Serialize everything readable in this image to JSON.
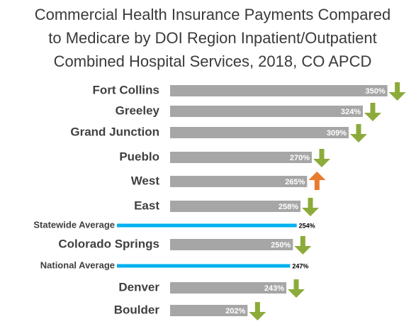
{
  "chart_data": {
    "type": "bar",
    "title_lines": [
      "Commercial Health Insurance Payments Compared",
      "to Medicare by DOI Region Inpatient/Outpatient",
      "Combined Hospital Services, 2018, CO APCD"
    ],
    "categories": [
      "Fort Collins",
      "Greeley",
      "Grand Junction",
      "Pueblo",
      "West",
      "East",
      "Statewide Average",
      "Colorado Springs",
      "National Average",
      "Denver",
      "Boulder"
    ],
    "values": [
      350,
      324,
      309,
      270,
      265,
      258,
      254,
      250,
      247,
      243,
      202
    ],
    "value_labels": [
      "350%",
      "324%",
      "309%",
      "270%",
      "265%",
      "258%",
      "254%",
      "250%",
      "247%",
      "243%",
      "202%"
    ],
    "styles": [
      "bar",
      "bar",
      "bar",
      "bar",
      "bar",
      "bar",
      "line",
      "bar",
      "line",
      "bar",
      "bar"
    ],
    "arrows": [
      "down",
      "down",
      "down",
      "down",
      "up",
      "down",
      null,
      "down",
      null,
      "down",
      "down"
    ],
    "color": "#a6a6a6",
    "line_color": "#00b0f0",
    "down_color": "#8cab3a",
    "up_color": "#e87b2e",
    "xlim": [
      120,
      360
    ]
  }
}
